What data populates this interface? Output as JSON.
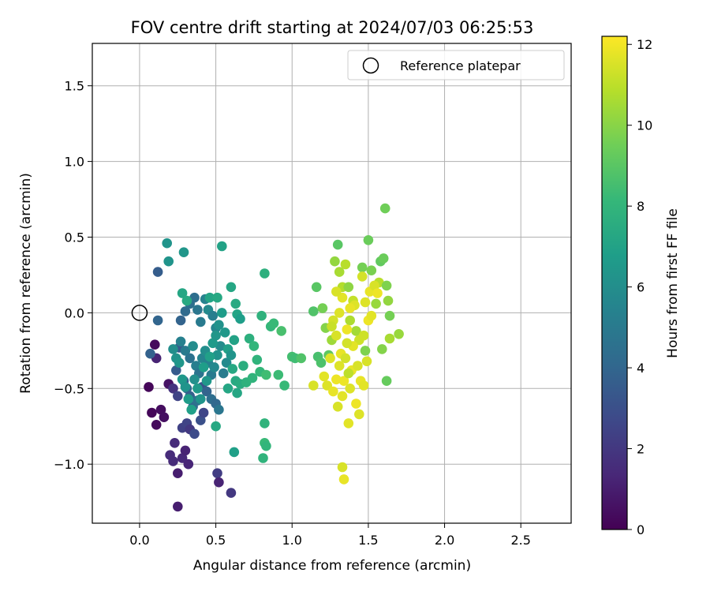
{
  "chart_data": {
    "type": "scatter",
    "title": "FOV centre drift starting at 2024/07/03 06:25:53",
    "xlabel": "Angular distance from reference (arcmin)",
    "ylabel": "Rotation from reference (arcmin)",
    "xlim": [
      -0.31,
      2.83
    ],
    "ylim": [
      -1.39,
      1.78
    ],
    "xticks": [
      0.0,
      0.5,
      1.0,
      1.5,
      2.0,
      2.5
    ],
    "xtick_labels": [
      "0.0",
      "0.5",
      "1.0",
      "1.5",
      "2.0",
      "2.5"
    ],
    "yticks": [
      -1.0,
      -0.5,
      0.0,
      0.5,
      1.0,
      1.5
    ],
    "ytick_labels": [
      "−1.0",
      "−0.5",
      "0.0",
      "0.5",
      "1.0",
      "1.5"
    ],
    "grid": true,
    "legend": {
      "position": "top-right",
      "entries": [
        {
          "label": "Reference platepar",
          "marker": "open-circle"
        }
      ]
    },
    "reference_point": {
      "x": 0.0,
      "y": 0.0
    },
    "colorbar": {
      "label": "Hours from first FF file",
      "range": [
        0,
        12.2
      ],
      "ticks": [
        0,
        2,
        4,
        6,
        8,
        10,
        12
      ],
      "tick_labels": [
        "0",
        "2",
        "4",
        "6",
        "8",
        "10",
        "12"
      ],
      "colormap": [
        "#440154",
        "#482878",
        "#3e4989",
        "#31688e",
        "#26828e",
        "#1f9e89",
        "#35b779",
        "#6ece58",
        "#b5de2b",
        "#fde725"
      ]
    },
    "points": [
      [
        0.06,
        -0.49,
        0.2
      ],
      [
        0.08,
        -0.66,
        0.2
      ],
      [
        0.11,
        -0.74,
        0.3
      ],
      [
        0.14,
        -0.64,
        0.4
      ],
      [
        0.16,
        -0.69,
        0.5
      ],
      [
        0.19,
        -0.47,
        0.6
      ],
      [
        0.1,
        -0.21,
        0.3
      ],
      [
        0.11,
        -0.3,
        1.2
      ],
      [
        0.07,
        -0.27,
        3.8
      ],
      [
        0.12,
        -0.05,
        4.0
      ],
      [
        0.12,
        0.27,
        3.6
      ],
      [
        0.18,
        0.46,
        6.3
      ],
      [
        0.19,
        0.34,
        6.3
      ],
      [
        0.29,
        0.4,
        6.4
      ],
      [
        0.2,
        -0.94,
        1.5
      ],
      [
        0.22,
        -0.98,
        1.5
      ],
      [
        0.23,
        -0.86,
        1.5
      ],
      [
        0.25,
        -1.06,
        1.0
      ],
      [
        0.28,
        -0.96,
        1.4
      ],
      [
        0.3,
        -0.91,
        1.2
      ],
      [
        0.32,
        -1.0,
        1.3
      ],
      [
        0.25,
        -1.28,
        1.0
      ],
      [
        0.22,
        -0.5,
        1.8
      ],
      [
        0.25,
        -0.55,
        2.5
      ],
      [
        0.28,
        -0.76,
        2.4
      ],
      [
        0.31,
        -0.73,
        2.5
      ],
      [
        0.33,
        -0.77,
        2.0
      ],
      [
        0.36,
        -0.8,
        2.8
      ],
      [
        0.4,
        -0.71,
        3.0
      ],
      [
        0.42,
        -0.66,
        2.6
      ],
      [
        0.51,
        -1.06,
        2.2
      ],
      [
        0.52,
        -1.12,
        1.2
      ],
      [
        0.6,
        -1.19,
        2.0
      ],
      [
        0.24,
        -0.38,
        3.5
      ],
      [
        0.26,
        -0.23,
        3.4
      ],
      [
        0.29,
        -0.45,
        3.6
      ],
      [
        0.31,
        -0.5,
        4.0
      ],
      [
        0.33,
        -0.55,
        3.7
      ],
      [
        0.35,
        -0.62,
        4.2
      ],
      [
        0.38,
        -0.58,
        4.6
      ],
      [
        0.41,
        -0.49,
        3.2
      ],
      [
        0.44,
        -0.52,
        3.9
      ],
      [
        0.47,
        -0.57,
        4.4
      ],
      [
        0.5,
        -0.6,
        4.1
      ],
      [
        0.52,
        -0.64,
        4.8
      ],
      [
        0.27,
        -0.05,
        3.9
      ],
      [
        0.3,
        0.01,
        4.2
      ],
      [
        0.33,
        0.06,
        4.5
      ],
      [
        0.36,
        0.1,
        4.4
      ],
      [
        0.38,
        0.02,
        4.8
      ],
      [
        0.4,
        -0.06,
        5.0
      ],
      [
        0.43,
        0.09,
        5.4
      ],
      [
        0.45,
        0.02,
        5.8
      ],
      [
        0.48,
        -0.02,
        5.2
      ],
      [
        0.5,
        -0.1,
        5.6
      ],
      [
        0.27,
        -0.19,
        5.3
      ],
      [
        0.3,
        -0.25,
        5.0
      ],
      [
        0.33,
        -0.3,
        4.6
      ],
      [
        0.35,
        -0.22,
        5.9
      ],
      [
        0.37,
        -0.35,
        5.2
      ],
      [
        0.39,
        -0.4,
        4.7
      ],
      [
        0.41,
        -0.3,
        5.5
      ],
      [
        0.43,
        -0.25,
        6.0
      ],
      [
        0.45,
        -0.33,
        5.4
      ],
      [
        0.47,
        -0.41,
        5.0
      ],
      [
        0.49,
        -0.36,
        5.7
      ],
      [
        0.51,
        -0.28,
        6.2
      ],
      [
        0.53,
        -0.22,
        5.9
      ],
      [
        0.55,
        -0.4,
        5.1
      ],
      [
        0.57,
        -0.33,
        5.8
      ],
      [
        0.22,
        -0.24,
        6.0
      ],
      [
        0.24,
        -0.3,
        6.2
      ],
      [
        0.26,
        -0.33,
        6.4
      ],
      [
        0.28,
        -0.44,
        6.5
      ],
      [
        0.3,
        -0.49,
        6.3
      ],
      [
        0.32,
        -0.57,
        6.7
      ],
      [
        0.34,
        -0.64,
        6.9
      ],
      [
        0.36,
        -0.44,
        6.1
      ],
      [
        0.38,
        -0.5,
        6.6
      ],
      [
        0.4,
        -0.57,
        6.3
      ],
      [
        0.42,
        -0.36,
        6.8
      ],
      [
        0.44,
        -0.45,
        6.5
      ],
      [
        0.46,
        -0.29,
        6.9
      ],
      [
        0.48,
        -0.2,
        6.6
      ],
      [
        0.5,
        -0.15,
        6.4
      ],
      [
        0.52,
        -0.08,
        6.2
      ],
      [
        0.54,
        0.0,
        6.7
      ],
      [
        0.56,
        -0.13,
        6.5
      ],
      [
        0.58,
        -0.24,
        6.9
      ],
      [
        0.6,
        -0.28,
        6.3
      ],
      [
        0.62,
        -0.18,
        7.0
      ],
      [
        0.64,
        -0.01,
        7.1
      ],
      [
        0.66,
        -0.04,
        6.8
      ],
      [
        0.28,
        0.13,
        7.2
      ],
      [
        0.31,
        0.08,
        7.4
      ],
      [
        0.46,
        0.1,
        7.1
      ],
      [
        0.51,
        0.1,
        7.3
      ],
      [
        0.54,
        0.44,
        7.0
      ],
      [
        0.6,
        0.17,
        7.2
      ],
      [
        0.63,
        0.06,
        7.4
      ],
      [
        0.58,
        -0.5,
        7.2
      ],
      [
        0.61,
        -0.37,
        7.3
      ],
      [
        0.63,
        -0.45,
        7.4
      ],
      [
        0.64,
        -0.53,
        7.2
      ],
      [
        0.66,
        -0.47,
        7.5
      ],
      [
        0.5,
        -0.75,
        7.3
      ],
      [
        0.62,
        -0.92,
        6.9
      ],
      [
        0.68,
        -0.35,
        7.6
      ],
      [
        0.7,
        -0.46,
        7.8
      ],
      [
        0.72,
        -0.17,
        7.7
      ],
      [
        0.74,
        -0.43,
        7.9
      ],
      [
        0.75,
        -0.22,
        8.0
      ],
      [
        0.77,
        -0.31,
        7.9
      ],
      [
        0.79,
        -0.39,
        8.1
      ],
      [
        0.8,
        -0.02,
        7.8
      ],
      [
        0.82,
        0.26,
        7.7
      ],
      [
        0.82,
        -0.73,
        7.9
      ],
      [
        0.82,
        -0.86,
        8.2
      ],
      [
        0.83,
        -0.88,
        8.0
      ],
      [
        0.81,
        -0.96,
        7.9
      ],
      [
        0.83,
        -0.41,
        8.4
      ],
      [
        0.86,
        -0.09,
        8.1
      ],
      [
        0.88,
        -0.07,
        8.2
      ],
      [
        0.91,
        -0.41,
        8.3
      ],
      [
        0.93,
        -0.12,
        8.6
      ],
      [
        0.95,
        -0.48,
        8.2
      ],
      [
        1.0,
        -0.29,
        8.5
      ],
      [
        1.02,
        -0.3,
        8.4
      ],
      [
        1.06,
        -0.3,
        8.8
      ],
      [
        1.14,
        0.01,
        8.8
      ],
      [
        1.16,
        0.17,
        9.0
      ],
      [
        1.17,
        -0.29,
        8.6
      ],
      [
        1.19,
        -0.33,
        8.7
      ],
      [
        1.2,
        0.03,
        9.6
      ],
      [
        1.22,
        -0.1,
        9.9
      ],
      [
        1.24,
        -0.28,
        9.1
      ],
      [
        1.26,
        -0.18,
        10.4
      ],
      [
        1.28,
        0.34,
        10.2
      ],
      [
        1.3,
        0.45,
        9.0
      ],
      [
        1.31,
        0.27,
        10.6
      ],
      [
        1.33,
        0.17,
        10.8
      ],
      [
        1.35,
        0.32,
        10.9
      ],
      [
        1.37,
        0.17,
        10.1
      ],
      [
        1.38,
        -0.05,
        10.7
      ],
      [
        1.4,
        0.08,
        11.1
      ],
      [
        1.42,
        -0.12,
        10.5
      ],
      [
        1.44,
        -0.18,
        11.3
      ],
      [
        1.46,
        0.3,
        9.6
      ],
      [
        1.48,
        -0.25,
        9.8
      ],
      [
        1.5,
        0.48,
        9.4
      ],
      [
        1.52,
        0.28,
        9.7
      ],
      [
        1.55,
        0.06,
        10.3
      ],
      [
        1.57,
        0.2,
        10.9
      ],
      [
        1.58,
        0.34,
        9.2
      ],
      [
        1.6,
        0.36,
        9.4
      ],
      [
        1.61,
        0.69,
        9.5
      ],
      [
        1.62,
        0.18,
        9.8
      ],
      [
        1.63,
        0.08,
        10.2
      ],
      [
        1.64,
        -0.02,
        9.6
      ],
      [
        1.62,
        -0.45,
        9.3
      ],
      [
        1.64,
        -0.17,
        10.6
      ],
      [
        1.7,
        -0.14,
        10.3
      ],
      [
        1.59,
        -0.24,
        9.9
      ],
      [
        1.14,
        -0.48,
        11.5
      ],
      [
        1.21,
        -0.42,
        11.7
      ],
      [
        1.23,
        -0.48,
        11.6
      ],
      [
        1.25,
        -0.3,
        11.6
      ],
      [
        1.27,
        -0.05,
        11.4
      ],
      [
        1.27,
        -0.52,
        11.8
      ],
      [
        1.29,
        -0.44,
        11.9
      ],
      [
        1.3,
        -0.62,
        11.5
      ],
      [
        1.31,
        -0.35,
        11.6
      ],
      [
        1.32,
        -0.27,
        11.8
      ],
      [
        1.33,
        -0.55,
        11.7
      ],
      [
        1.33,
        -1.02,
        11.5
      ],
      [
        1.34,
        -1.1,
        11.8
      ],
      [
        1.34,
        -0.45,
        11.9
      ],
      [
        1.35,
        -0.3,
        11.4
      ],
      [
        1.36,
        -0.11,
        11.9
      ],
      [
        1.37,
        -0.73,
        11.7
      ],
      [
        1.38,
        -0.5,
        11.6
      ],
      [
        1.39,
        -0.38,
        11.8
      ],
      [
        1.4,
        -0.22,
        11.7
      ],
      [
        1.41,
        0.05,
        11.6
      ],
      [
        1.42,
        -0.6,
        11.9
      ],
      [
        1.43,
        -0.35,
        11.5
      ],
      [
        1.44,
        -0.67,
        11.6
      ],
      [
        1.45,
        -0.45,
        11.8
      ],
      [
        1.46,
        0.24,
        11.4
      ],
      [
        1.47,
        -0.48,
        11.7
      ],
      [
        1.48,
        0.07,
        11.6
      ],
      [
        1.5,
        -0.05,
        11.9
      ],
      [
        1.51,
        0.14,
        11.8
      ],
      [
        1.52,
        -0.02,
        11.7
      ],
      [
        1.54,
        0.18,
        11.5
      ],
      [
        1.56,
        0.13,
        11.9
      ],
      [
        1.31,
        0.0,
        11.6
      ],
      [
        1.33,
        0.1,
        11.7
      ],
      [
        1.29,
        -0.15,
        11.5
      ],
      [
        1.36,
        -0.2,
        11.4
      ],
      [
        1.38,
        0.03,
        11.8
      ],
      [
        1.47,
        -0.15,
        11.3
      ],
      [
        1.49,
        -0.32,
        11.5
      ],
      [
        1.26,
        -0.09,
        11.2
      ],
      [
        1.37,
        -0.4,
        11.0
      ],
      [
        1.29,
        0.14,
        11.5
      ]
    ]
  }
}
